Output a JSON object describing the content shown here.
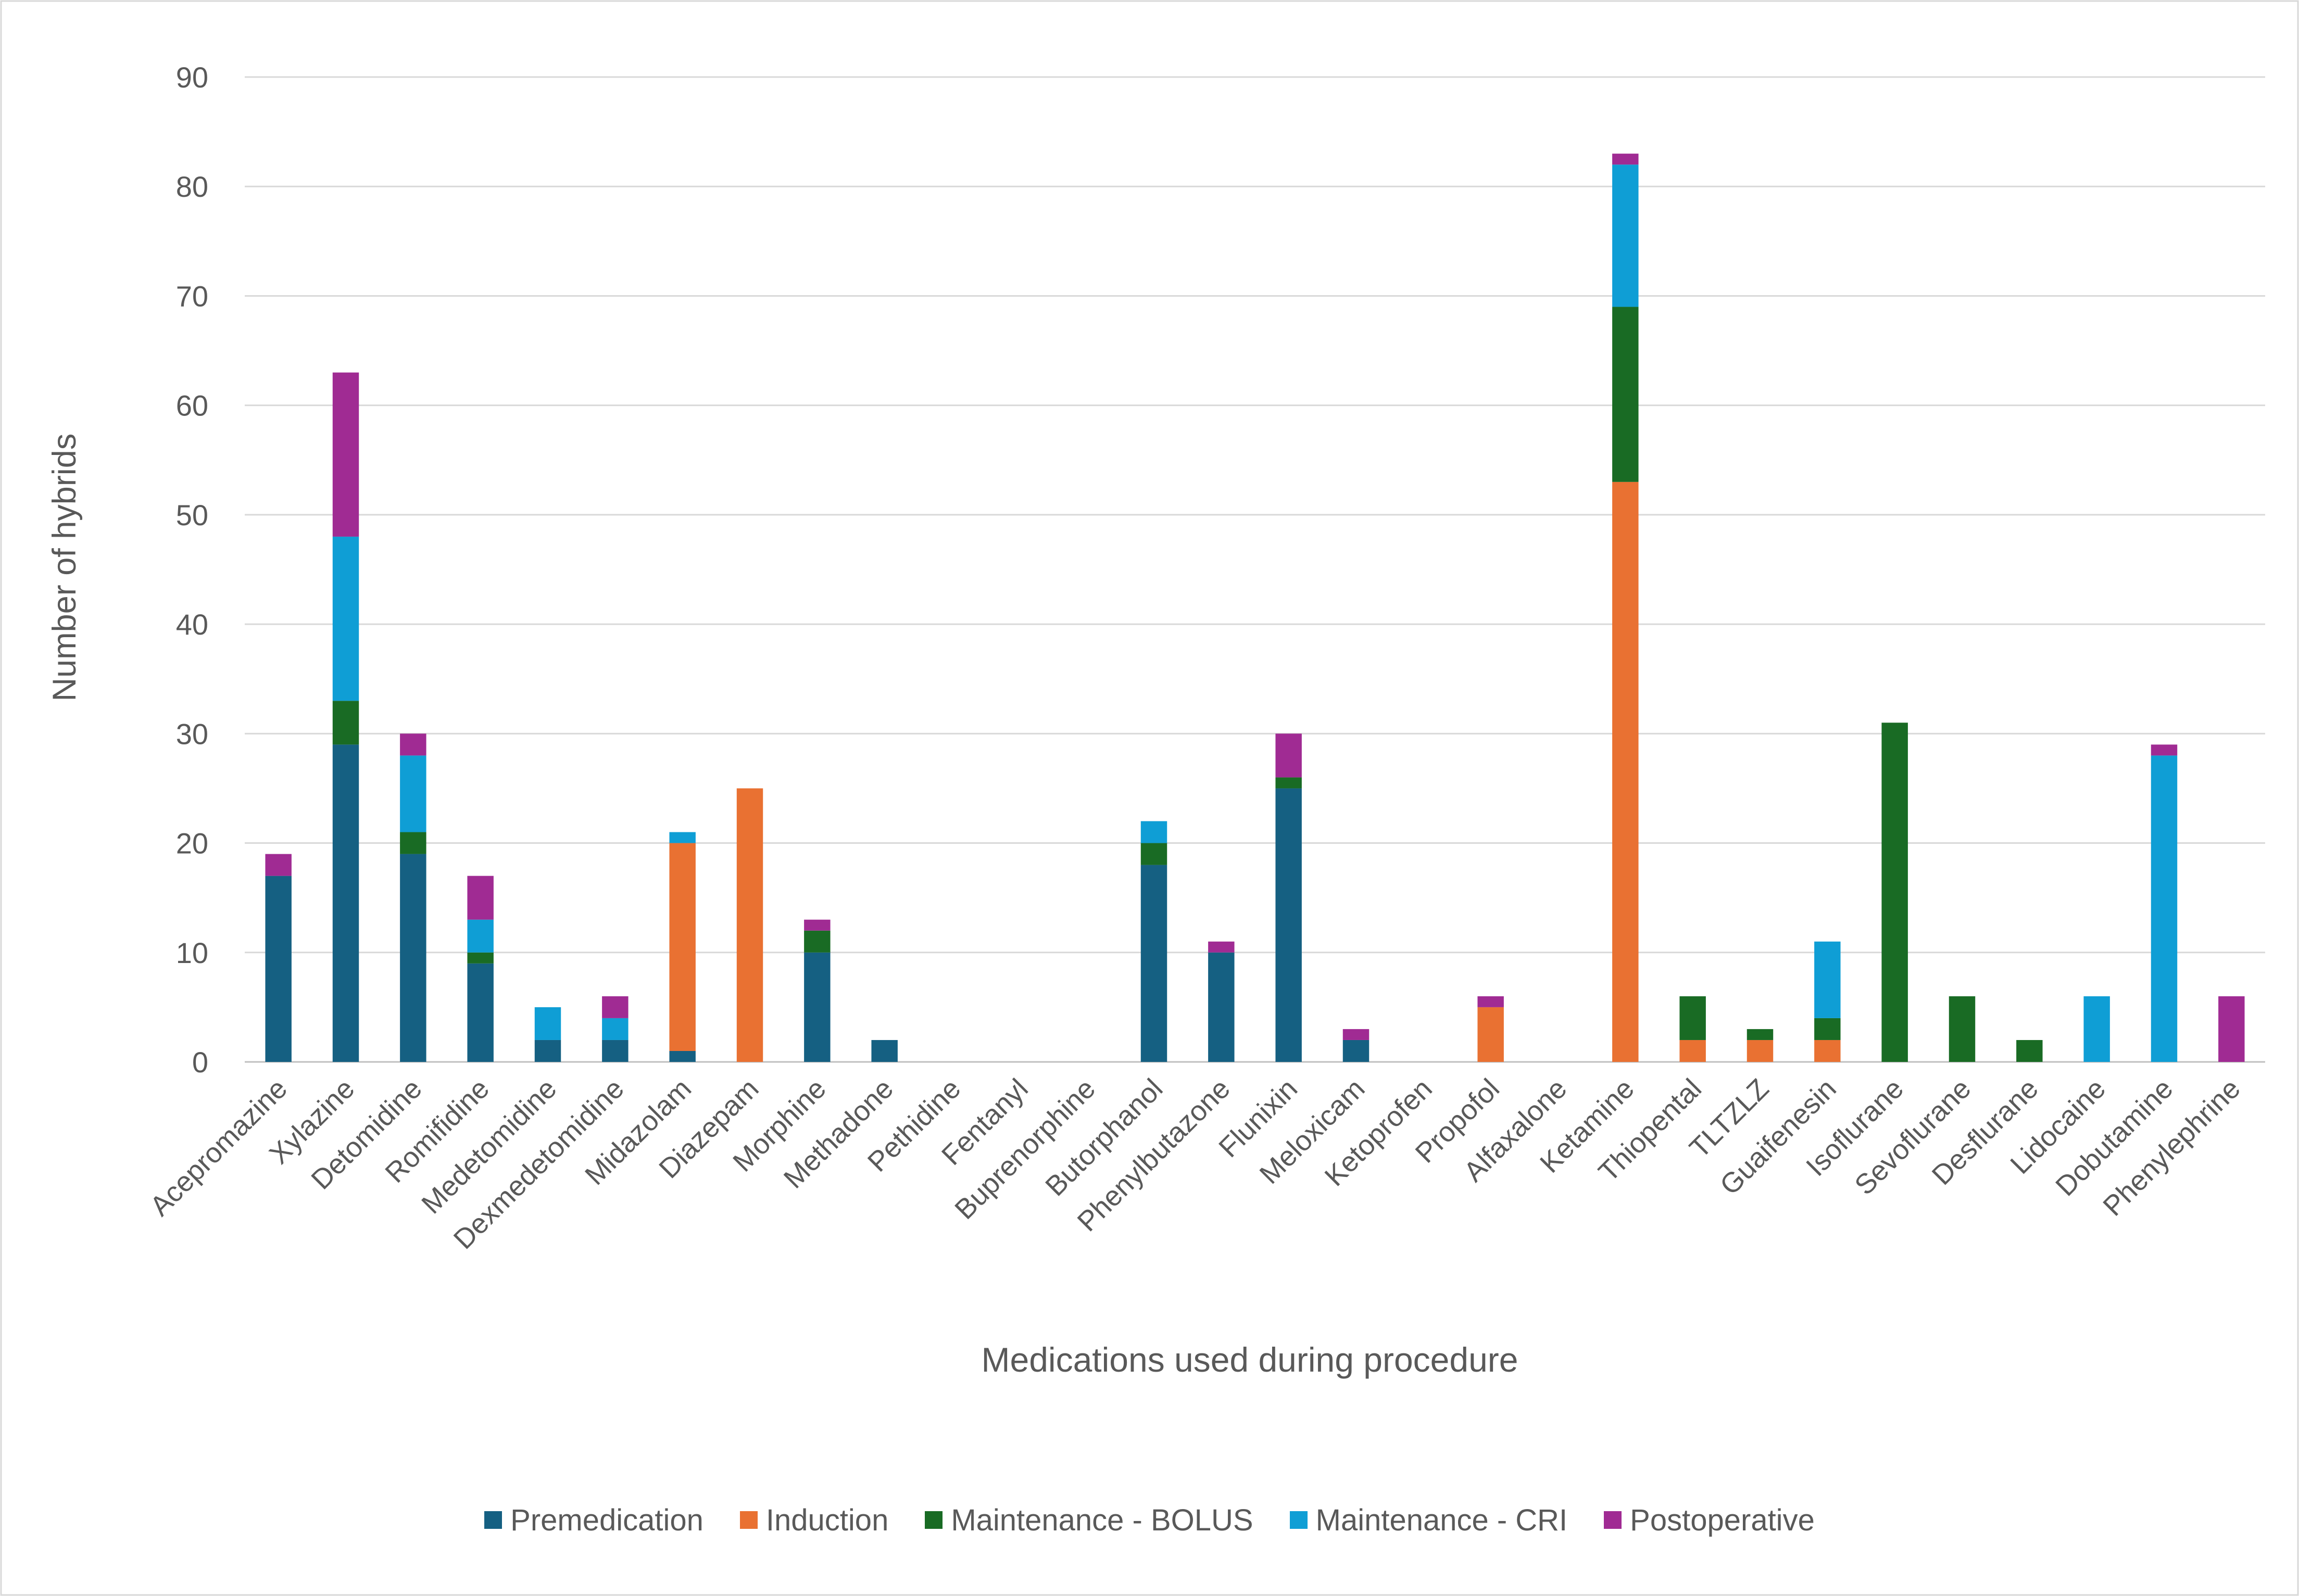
{
  "chart_data": {
    "type": "bar",
    "stacked": true,
    "title": "",
    "xlabel": "Medications used during procedure",
    "ylabel": "Number of hybrids",
    "ylim": [
      0,
      90
    ],
    "yticks": [
      0,
      10,
      20,
      30,
      40,
      50,
      60,
      70,
      80,
      90
    ],
    "grid": true,
    "legend_position": "bottom",
    "categories": [
      "Acepromazine",
      "Xylazine",
      "Detomidine",
      "Romifidine",
      "Medetomidine",
      "Dexmedetomidine",
      "Midazolam",
      "Diazepam",
      "Morphine",
      "Methadone",
      "Pethidine",
      "Fentanyl",
      "Buprenorphine",
      "Butorphanol",
      "Phenylbutazone",
      "Flunixin",
      "Meloxicam",
      "Ketoprofen",
      "Propofol",
      "Alfaxalone",
      "Ketamine",
      "Thiopental",
      "TLTZLZ",
      "Guaifenesin",
      "Isoflurane",
      "Sevoflurane",
      "Desflurane",
      "Lidocaine",
      "Dobutamine",
      "Phenylephrine"
    ],
    "series": [
      {
        "name": "Premedication",
        "color": "#156082",
        "values": [
          17,
          29,
          19,
          9,
          2,
          2,
          1,
          0,
          10,
          2,
          0,
          0,
          0,
          18,
          10,
          25,
          2,
          0,
          0,
          0,
          0,
          0,
          0,
          0,
          0,
          0,
          0,
          0,
          0,
          0
        ]
      },
      {
        "name": "Induction",
        "color": "#E97132",
        "values": [
          0,
          0,
          0,
          0,
          0,
          0,
          19,
          25,
          0,
          0,
          0,
          0,
          0,
          0,
          0,
          0,
          0,
          0,
          5,
          0,
          53,
          2,
          2,
          2,
          0,
          0,
          0,
          0,
          0,
          0
        ]
      },
      {
        "name": "Maintenance - BOLUS",
        "color": "#196B24",
        "values": [
          0,
          4,
          2,
          1,
          0,
          0,
          0,
          0,
          2,
          0,
          0,
          0,
          0,
          2,
          0,
          1,
          0,
          0,
          0,
          0,
          16,
          4,
          1,
          2,
          31,
          6,
          2,
          0,
          0,
          0
        ]
      },
      {
        "name": "Maintenance - CRI",
        "color": "#0F9ED5",
        "values": [
          0,
          15,
          7,
          3,
          3,
          2,
          1,
          0,
          0,
          0,
          0,
          0,
          0,
          2,
          0,
          0,
          0,
          0,
          0,
          0,
          13,
          0,
          0,
          7,
          0,
          0,
          0,
          6,
          28,
          0
        ]
      },
      {
        "name": "Postoperative",
        "color": "#A02B93",
        "values": [
          2,
          15,
          2,
          4,
          0,
          2,
          0,
          0,
          1,
          0,
          0,
          0,
          0,
          0,
          1,
          4,
          1,
          0,
          1,
          0,
          1,
          0,
          0,
          0,
          0,
          0,
          0,
          0,
          1,
          6
        ]
      }
    ]
  }
}
